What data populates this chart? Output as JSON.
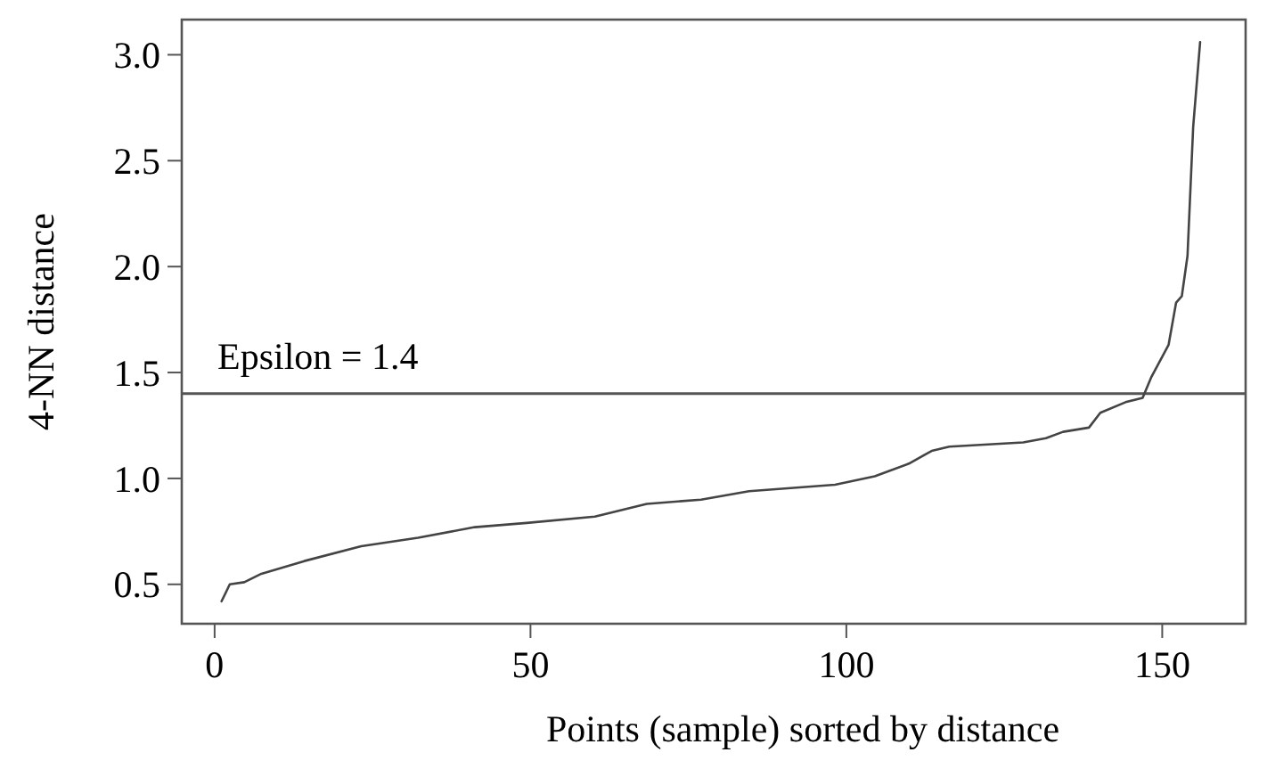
{
  "chart_data": {
    "type": "line",
    "xlabel": "Points (sample) sorted by distance",
    "ylabel": "4-NN distance",
    "x": [
      1.1,
      2.4,
      4.7,
      7.4,
      14.2,
      23.2,
      32.2,
      41.2,
      49.4,
      60.2,
      68.4,
      77,
      84.6,
      98.2,
      104.5,
      109.9,
      113.5,
      116.3,
      128,
      131.6,
      134.3,
      138.4,
      140.2,
      144.2,
      146.9,
      148.3,
      151,
      152.2,
      153.1,
      154,
      154.9,
      156
    ],
    "series": [
      {
        "color": "#444444",
        "values": [
          0.42,
          0.5,
          0.51,
          0.55,
          0.61,
          0.68,
          0.72,
          0.77,
          0.79,
          0.82,
          0.88,
          0.9,
          0.94,
          0.97,
          1.01,
          1.07,
          1.13,
          1.15,
          1.17,
          1.19,
          1.22,
          1.24,
          1.31,
          1.36,
          1.38,
          1.48,
          1.63,
          1.83,
          1.86,
          2.05,
          2.66,
          3.06
        ]
      }
    ],
    "xlim": [
      -5.2,
      163.2
    ],
    "ylim": [
      0.314,
      3.166
    ],
    "xticks": [
      0,
      50,
      100,
      150
    ],
    "yticks": [
      0.5,
      {
        "value": 1,
        "label": "1.0"
      },
      1.5,
      {
        "value": 2,
        "label": "2.0"
      },
      2.5,
      {
        "value": 3,
        "label": "3.0"
      }
    ],
    "ref_lines": [
      {
        "axis": "y",
        "value": 1.4,
        "label": "Epsilon = 1.4",
        "color": "#555555"
      }
    ],
    "marker": "none",
    "line_style": "solid"
  }
}
